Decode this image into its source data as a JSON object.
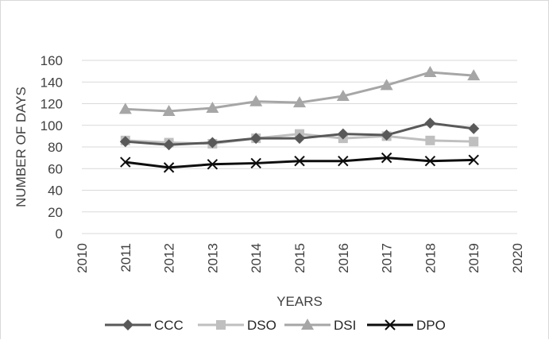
{
  "chart_data": {
    "type": "scatter",
    "title": "",
    "xlabel": "YEARS",
    "ylabel": "NUMBER OF DAYS",
    "xlim": [
      2010,
      2020
    ],
    "ylim": [
      0,
      160
    ],
    "xticks": [
      "2010",
      "2011",
      "2012",
      "2013",
      "2014",
      "2015",
      "2016",
      "2017",
      "2018",
      "2019",
      "2020"
    ],
    "yticks": [
      "0",
      "20",
      "40",
      "60",
      "80",
      "100",
      "120",
      "140",
      "160"
    ],
    "grid": "horizontal",
    "legend_position": "bottom",
    "x": [
      2011,
      2012,
      2013,
      2014,
      2015,
      2016,
      2017,
      2018,
      2019
    ],
    "series": [
      {
        "name": "CCC",
        "marker": "diamond",
        "color": "#595959",
        "values": [
          85,
          82,
          84,
          88,
          88,
          92,
          91,
          102,
          97
        ]
      },
      {
        "name": "DSO",
        "marker": "square",
        "color": "#bfbfbf",
        "values": [
          86,
          84,
          83,
          88,
          92,
          88,
          90,
          86,
          85
        ]
      },
      {
        "name": "DSI",
        "marker": "triangle",
        "color": "#a6a6a6",
        "values": [
          115,
          113,
          116,
          122,
          121,
          127,
          137,
          149,
          146
        ]
      },
      {
        "name": "DPO",
        "marker": "x",
        "color": "#0d0d0d",
        "values": [
          66,
          61,
          64,
          65,
          67,
          67,
          70,
          67,
          68
        ]
      }
    ]
  }
}
